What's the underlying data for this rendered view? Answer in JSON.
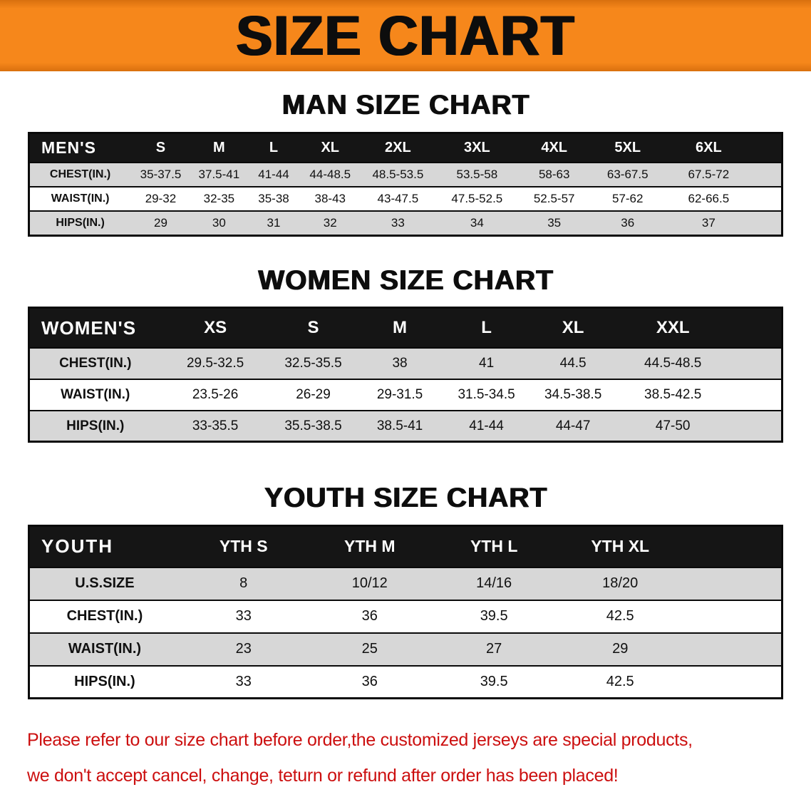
{
  "banner": {
    "title": "SIZE CHART"
  },
  "colors": {
    "banner_orange": "#f6871b",
    "header_black": "#151515",
    "row_gray": "#d7d7d7",
    "footer_red": "#cc0f0f"
  },
  "sections": [
    {
      "id": "mens",
      "heading": "MAN SIZE CHART",
      "table": {
        "columns": [
          "MEN'S",
          "S",
          "M",
          "L",
          "XL",
          "2XL",
          "3XL",
          "4XL",
          "5XL",
          "6XL"
        ],
        "rows": [
          [
            "CHEST(IN.)",
            "35-37.5",
            "37.5-41",
            "41-44",
            "44-48.5",
            "48.5-53.5",
            "53.5-58",
            "58-63",
            "63-67.5",
            "67.5-72"
          ],
          [
            "WAIST(IN.)",
            "29-32",
            "32-35",
            "35-38",
            "38-43",
            "43-47.5",
            "47.5-52.5",
            "52.5-57",
            "57-62",
            "62-66.5"
          ],
          [
            "HIPS(IN.)",
            "29",
            "30",
            "31",
            "32",
            "33",
            "34",
            "35",
            "36",
            "37"
          ]
        ]
      }
    },
    {
      "id": "womens",
      "heading": "WOMEN SIZE CHART",
      "table": {
        "columns": [
          "WOMEN'S",
          "XS",
          "S",
          "M",
          "L",
          "XL",
          "XXL"
        ],
        "rows": [
          [
            "CHEST(IN.)",
            "29.5-32.5",
            "32.5-35.5",
            "38",
            "41",
            "44.5",
            "44.5-48.5"
          ],
          [
            "WAIST(IN.)",
            "23.5-26",
            "26-29",
            "29-31.5",
            "31.5-34.5",
            "34.5-38.5",
            "38.5-42.5"
          ],
          [
            "HIPS(IN.)",
            "33-35.5",
            "35.5-38.5",
            "38.5-41",
            "41-44",
            "44-47",
            "47-50"
          ]
        ]
      }
    },
    {
      "id": "youth",
      "heading": "YOUTH SIZE CHART",
      "table": {
        "columns": [
          "YOUTH",
          "YTH S",
          "YTH M",
          "YTH L",
          "YTH XL"
        ],
        "rows": [
          [
            "U.S.SIZE",
            "8",
            "10/12",
            "14/16",
            "18/20"
          ],
          [
            "CHEST(IN.)",
            "33",
            "36",
            "39.5",
            "42.5"
          ],
          [
            "WAIST(IN.)",
            "23",
            "25",
            "27",
            "29"
          ],
          [
            "HIPS(IN.)",
            "33",
            "36",
            "39.5",
            "42.5"
          ]
        ]
      }
    }
  ],
  "footer": {
    "lines": [
      "Please refer to our size chart before order,the customized jerseys are special products,",
      "we don't accept cancel, change, teturn or refund after order has been placed!"
    ]
  }
}
